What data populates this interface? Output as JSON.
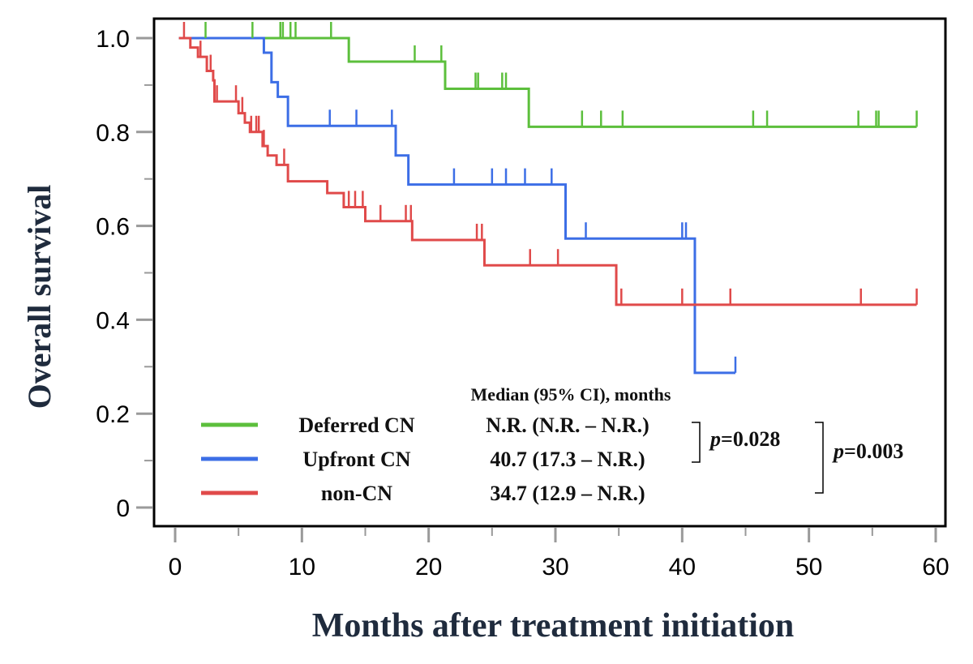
{
  "chart_data": {
    "type": "line",
    "step": true,
    "xlabel": "Months after treatment initiation",
    "ylabel": "Overall survival",
    "xlim": [
      -1.5,
      60.5
    ],
    "ylim": [
      -0.04,
      1.04
    ],
    "x_ticks": [
      0,
      10,
      20,
      30,
      40,
      50,
      60
    ],
    "x_tick_labels": [
      "0",
      "10",
      "20",
      "30",
      "40",
      "50",
      "60"
    ],
    "y_ticks": [
      0,
      0.2,
      0.4,
      0.6,
      0.8,
      1.0
    ],
    "y_tick_labels": [
      "0",
      "0.2",
      "0.4",
      "0.6",
      "0.8",
      "1.0"
    ],
    "grid": false,
    "legend_position": "bottom-left",
    "legend_header": "Median (95% CI), months",
    "series": [
      {
        "name": "Deferred CN",
        "median_label": "N.R. (N.R. – N.R.)",
        "color": "#5cbf3c",
        "steps": [
          [
            0.3,
            1.0
          ],
          [
            13.7,
            0.95
          ],
          [
            21.3,
            0.892
          ],
          [
            27.9,
            0.811
          ],
          [
            58.5,
            0.811
          ]
        ],
        "censored": [
          2.4,
          6.1,
          8.3,
          8.5,
          9.1,
          9.5,
          12.3,
          18.9,
          21.0,
          23.7,
          23.9,
          25.8,
          26.1,
          32.1,
          33.6,
          35.3,
          45.6,
          46.7,
          53.9,
          55.3,
          55.5,
          58.5
        ]
      },
      {
        "name": "Upfront CN",
        "median_label": "40.7 (17.3 – N.R.)",
        "color": "#3c6ee6",
        "steps": [
          [
            0.3,
            1.0
          ],
          [
            7.0,
            0.969
          ],
          [
            7.6,
            0.906
          ],
          [
            8.1,
            0.875
          ],
          [
            8.9,
            0.813
          ],
          [
            17.4,
            0.75
          ],
          [
            18.4,
            0.688
          ],
          [
            30.8,
            0.573
          ],
          [
            41.0,
            0.287
          ],
          [
            44.2,
            0.287
          ]
        ],
        "censored": [
          12.2,
          14.3,
          17.1,
          22.0,
          25.0,
          26.1,
          27.6,
          29.7,
          32.4,
          40.0,
          40.3,
          44.2
        ]
      },
      {
        "name": "non-CN",
        "median_label": "34.7 (12.9 – N.R.)",
        "color": "#e04a4a",
        "steps": [
          [
            0.3,
            1.0
          ],
          [
            1.2,
            0.98
          ],
          [
            1.8,
            0.96
          ],
          [
            2.5,
            0.93
          ],
          [
            3.0,
            0.91
          ],
          [
            3.1,
            0.865
          ],
          [
            5.0,
            0.84
          ],
          [
            5.5,
            0.82
          ],
          [
            5.9,
            0.8
          ],
          [
            6.9,
            0.77
          ],
          [
            7.3,
            0.75
          ],
          [
            8.0,
            0.73
          ],
          [
            8.9,
            0.695
          ],
          [
            12.0,
            0.67
          ],
          [
            13.3,
            0.64
          ],
          [
            15.0,
            0.61
          ],
          [
            18.7,
            0.57
          ],
          [
            24.4,
            0.516
          ],
          [
            34.8,
            0.432
          ],
          [
            58.5,
            0.432
          ]
        ],
        "censored": [
          0.7,
          2.0,
          2.8,
          3.3,
          4.8,
          5.3,
          6.0,
          6.4,
          6.6,
          7.0,
          8.6,
          13.7,
          14.2,
          14.8,
          16.2,
          18.2,
          18.6,
          23.8,
          24.2,
          28.0,
          30.2,
          35.2,
          40.0,
          43.8,
          54.1,
          58.5
        ]
      }
    ],
    "annotations": [
      {
        "text": "p=0.028",
        "p_symbol": "p",
        "value": "=0.028"
      },
      {
        "text": "p=0.003",
        "p_symbol": "p",
        "value": "=0.003"
      }
    ]
  }
}
